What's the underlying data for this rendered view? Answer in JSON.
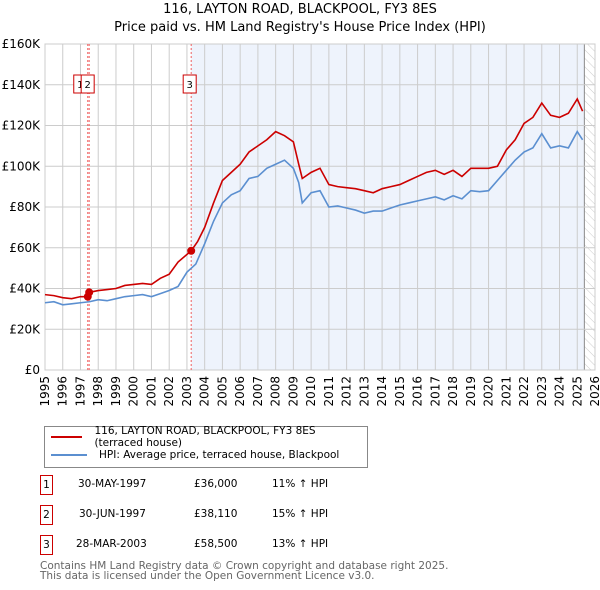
{
  "chart_data": {
    "type": "line",
    "title": "116, LAYTON ROAD, BLACKPOOL, FY3 8ES",
    "subtitle": "Price paid vs. HM Land Registry's House Price Index (HPI)",
    "xlim": [
      1995,
      2026
    ],
    "ylim": [
      0,
      160000
    ],
    "x_ticks": [
      "1995",
      "1996",
      "1997",
      "1998",
      "1999",
      "2000",
      "2001",
      "2002",
      "2003",
      "2004",
      "2005",
      "2006",
      "2007",
      "2008",
      "2009",
      "2010",
      "2011",
      "2012",
      "2013",
      "2014",
      "2015",
      "2016",
      "2017",
      "2018",
      "2019",
      "2020",
      "2021",
      "2022",
      "2023",
      "2024",
      "2025",
      "2026"
    ],
    "y_ticks": [
      {
        "v": 0,
        "label": "£0"
      },
      {
        "v": 20000,
        "label": "£20K"
      },
      {
        "v": 40000,
        "label": "£40K"
      },
      {
        "v": 60000,
        "label": "£60K"
      },
      {
        "v": 80000,
        "label": "£80K"
      },
      {
        "v": 100000,
        "label": "£100K"
      },
      {
        "v": 120000,
        "label": "£120K"
      },
      {
        "v": 140000,
        "label": "£140K"
      },
      {
        "v": 160000,
        "label": "£160K"
      }
    ],
    "grid": true,
    "colors": {
      "property": "#cc0000",
      "hpi": "#5b8fd0",
      "shade": "#eef3fc"
    },
    "series": [
      {
        "name": "116, LAYTON ROAD, BLACKPOOL, FY3 8ES (terraced house)",
        "x": [
          1995,
          1995.5,
          1996,
          1996.5,
          1997,
          1997.41,
          1997.49,
          1998,
          1998.5,
          1999,
          1999.5,
          2000,
          2000.5,
          2001,
          2001.5,
          2002,
          2002.5,
          2003.24,
          2003.6,
          2004,
          2004.5,
          2005,
          2005.5,
          2006,
          2006.5,
          2007,
          2007.5,
          2008,
          2008.5,
          2009,
          2009.3,
          2009.5,
          2010,
          2010.5,
          2011,
          2011.5,
          2012,
          2012.5,
          2013,
          2013.5,
          2014,
          2014.5,
          2015,
          2015.5,
          2016,
          2016.5,
          2017,
          2017.5,
          2018,
          2018.5,
          2019,
          2019.5,
          2020,
          2020.5,
          2021,
          2021.5,
          2022,
          2022.5,
          2023,
          2023.5,
          2024,
          2024.5,
          2025,
          2025.3
        ],
        "y": [
          37000,
          36500,
          35500,
          35000,
          36000,
          36000,
          38110,
          39000,
          39500,
          40000,
          41500,
          42000,
          42500,
          42000,
          45000,
          47000,
          53000,
          58500,
          63000,
          70000,
          82000,
          93000,
          97000,
          101000,
          107000,
          110000,
          113000,
          117000,
          115000,
          112000,
          101000,
          94000,
          97000,
          99000,
          91000,
          90000,
          89500,
          89000,
          88000,
          87000,
          89000,
          90000,
          91000,
          93000,
          95000,
          97000,
          98000,
          96000,
          98000,
          95000,
          99000,
          99000,
          99000,
          100000,
          108000,
          113000,
          121000,
          124000,
          131000,
          125000,
          124000,
          126000,
          133000,
          127000
        ]
      },
      {
        "name": "HPI: Average price, terraced house, Blackpool",
        "x": [
          1995,
          1995.5,
          1996,
          1996.5,
          1997,
          1997.5,
          1998,
          1998.5,
          1999,
          1999.5,
          2000,
          2000.5,
          2001,
          2001.5,
          2002,
          2002.5,
          2003,
          2003.5,
          2004,
          2004.5,
          2005,
          2005.5,
          2006,
          2006.5,
          2007,
          2007.5,
          2008,
          2008.5,
          2009,
          2009.3,
          2009.5,
          2010,
          2010.5,
          2011,
          2011.5,
          2012,
          2012.5,
          2013,
          2013.5,
          2014,
          2014.5,
          2015,
          2015.5,
          2016,
          2016.5,
          2017,
          2017.5,
          2018,
          2018.5,
          2019,
          2019.5,
          2020,
          2020.5,
          2021,
          2021.5,
          2022,
          2022.5,
          2023,
          2023.5,
          2024,
          2024.5,
          2025,
          2025.3
        ],
        "y": [
          33000,
          33500,
          32000,
          32500,
          33000,
          33500,
          34500,
          34000,
          35000,
          36000,
          36500,
          37000,
          36000,
          37500,
          39000,
          41000,
          48000,
          52000,
          62000,
          73000,
          82000,
          86000,
          88000,
          94000,
          95000,
          99000,
          101000,
          103000,
          99000,
          92000,
          82000,
          87000,
          88000,
          80000,
          80500,
          79500,
          78500,
          77000,
          78000,
          78000,
          79500,
          81000,
          82000,
          83000,
          84000,
          85000,
          83500,
          85500,
          84000,
          88000,
          87500,
          88000,
          93000,
          98000,
          103000,
          107000,
          109000,
          116000,
          109000,
          110000,
          109000,
          117000,
          113000
        ]
      }
    ],
    "sales": [
      {
        "id": "1",
        "date": "30-MAY-1997",
        "x": 1997.41,
        "price": 36000,
        "price_label": "£36,000",
        "hpi": "11% ↑ HPI"
      },
      {
        "id": "2",
        "date": "30-JUN-1997",
        "x": 1997.49,
        "price": 38110,
        "price_label": "£38,110",
        "hpi": "15% ↑ HPI"
      },
      {
        "id": "3",
        "date": "28-MAR-2003",
        "x": 2003.24,
        "price": 58500,
        "price_label": "£58,500",
        "hpi": "13% ↑ HPI"
      }
    ],
    "data_end": 2025.4
  },
  "footer": {
    "line1": "Contains HM Land Registry data © Crown copyright and database right 2025.",
    "line2": "This data is licensed under the Open Government Licence v3.0."
  }
}
